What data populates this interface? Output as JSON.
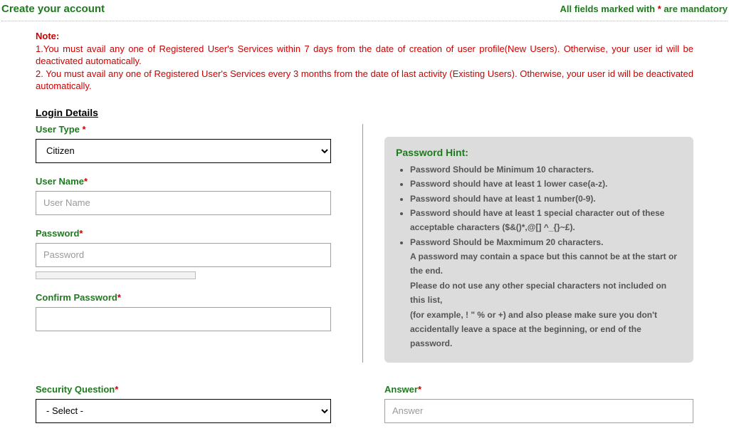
{
  "header": {
    "title": "Create your account",
    "mandatory_prefix": "All fields marked with ",
    "mandatory_ast": "*",
    "mandatory_suffix": " are mandatory"
  },
  "note": {
    "title": "Note:",
    "line1": "1.You must avail any one of Registered User's Services within 7 days from the date of creation of user profile(New Users). Otherwise, your user id will be deactivated automatically.",
    "line2": "2. You must avail any one of Registered User's Services every 3 months from the date of last activity (Existing Users). Otherwise, your user id will be deactivated automatically."
  },
  "section": {
    "login_details": "Login Details"
  },
  "labels": {
    "user_type": "User Type",
    "user_name": "User Name",
    "password": "Password",
    "confirm_password": "Confirm Password",
    "security_question": "Security Question",
    "answer": "Answer",
    "ast": "*"
  },
  "placeholders": {
    "user_name": "User Name",
    "password": "Password",
    "answer": "Answer"
  },
  "options": {
    "user_type": "Citizen",
    "security_question": "- Select -"
  },
  "hint": {
    "title": "Password Hint:",
    "items": [
      "Password Should be Minimum 10 characters.",
      "Password should have at least 1 lower case(a-z).",
      "Password should have at least 1 number(0-9).",
      "Password should have at least 1 special character out of these acceptable characters ($&()*,@[] ^_{}~£).",
      "Password Should be Maxmimum 20 characters."
    ],
    "sub1": "A password may contain a space but this cannot be at the start or the end.",
    "sub2": "Please do not use any other special characters not included on this list,",
    "sub3": "(for example, ! \" % or +) and also please make sure you don't accidentally leave a space at the beginning, or end of the password."
  }
}
